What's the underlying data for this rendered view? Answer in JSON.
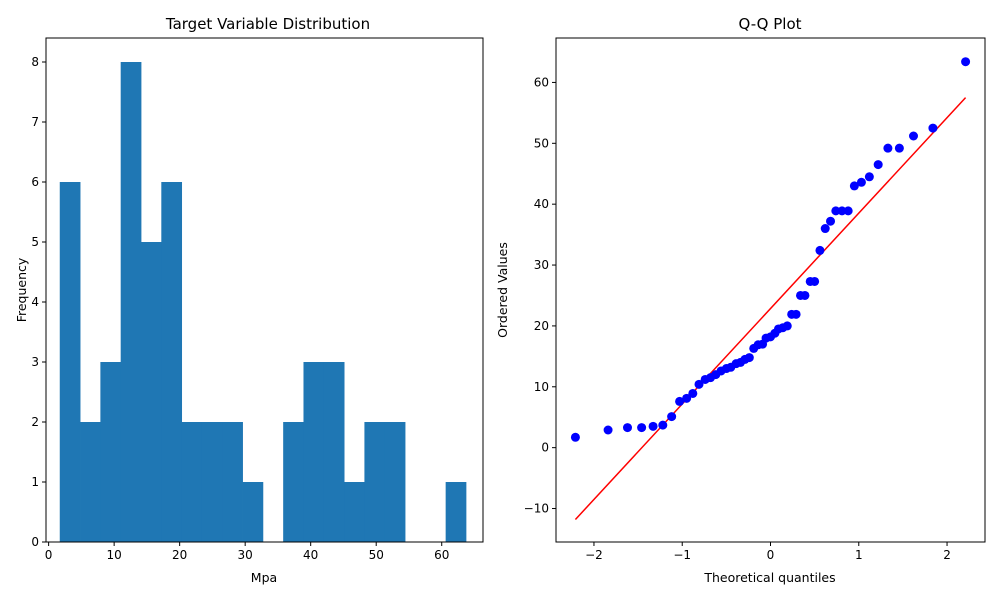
{
  "chart_data": [
    {
      "type": "bar",
      "subtype": "histogram",
      "title": "Target Variable Distribution",
      "xlabel": "Mpa",
      "ylabel": "Frequency",
      "color": "#1f77b4",
      "xlim": [
        -0.4,
        66.3
      ],
      "ylim": [
        0,
        8.4
      ],
      "xticks": [
        0,
        10,
        20,
        30,
        40,
        50,
        60
      ],
      "yticks": [
        0,
        1,
        2,
        3,
        4,
        5,
        6,
        7,
        8
      ],
      "bins": [
        {
          "start": 1.7,
          "end": 4.8,
          "count": 6
        },
        {
          "start": 4.8,
          "end": 7.9,
          "count": 2
        },
        {
          "start": 7.9,
          "end": 11.0,
          "count": 3
        },
        {
          "start": 11.0,
          "end": 14.1,
          "count": 8
        },
        {
          "start": 14.1,
          "end": 17.2,
          "count": 5
        },
        {
          "start": 17.2,
          "end": 20.3,
          "count": 6
        },
        {
          "start": 20.3,
          "end": 23.4,
          "count": 2
        },
        {
          "start": 23.4,
          "end": 26.5,
          "count": 2
        },
        {
          "start": 26.5,
          "end": 29.6,
          "count": 2
        },
        {
          "start": 29.6,
          "end": 32.7,
          "count": 1
        },
        {
          "start": 32.7,
          "end": 35.8,
          "count": 0
        },
        {
          "start": 35.8,
          "end": 38.9,
          "count": 2
        },
        {
          "start": 38.9,
          "end": 42.0,
          "count": 3
        },
        {
          "start": 42.0,
          "end": 45.1,
          "count": 3
        },
        {
          "start": 45.1,
          "end": 48.2,
          "count": 1
        },
        {
          "start": 48.2,
          "end": 51.3,
          "count": 2
        },
        {
          "start": 51.3,
          "end": 54.4,
          "count": 2
        },
        {
          "start": 54.4,
          "end": 57.5,
          "count": 0
        },
        {
          "start": 57.5,
          "end": 60.6,
          "count": 0
        },
        {
          "start": 60.6,
          "end": 63.7,
          "count": 1
        }
      ]
    },
    {
      "type": "scatter",
      "title": "Q-Q Plot",
      "xlabel": "Theoretical quantiles",
      "ylabel": "Ordered Values",
      "point_color": "#0000ff",
      "line_color": "#ff0000",
      "xlim": [
        -2.43,
        2.43
      ],
      "ylim": [
        -15.5,
        67.3
      ],
      "xticks": [
        -2,
        -1,
        0,
        1,
        2
      ],
      "yticks": [
        -10,
        0,
        10,
        20,
        30,
        40,
        50,
        60
      ],
      "fit_line": {
        "x": [
          -2.21,
          2.21
        ],
        "y": [
          -11.8,
          57.5
        ]
      },
      "points": [
        {
          "x": -2.21,
          "y": 1.7
        },
        {
          "x": -1.84,
          "y": 2.9
        },
        {
          "x": -1.62,
          "y": 3.3
        },
        {
          "x": -1.46,
          "y": 3.3
        },
        {
          "x": -1.33,
          "y": 3.5
        },
        {
          "x": -1.22,
          "y": 3.7
        },
        {
          "x": -1.12,
          "y": 5.1
        },
        {
          "x": -1.03,
          "y": 7.6
        },
        {
          "x": -0.95,
          "y": 8.1
        },
        {
          "x": -0.88,
          "y": 8.9
        },
        {
          "x": -0.81,
          "y": 10.4
        },
        {
          "x": -0.74,
          "y": 11.2
        },
        {
          "x": -0.68,
          "y": 11.5
        },
        {
          "x": -0.62,
          "y": 12.0
        },
        {
          "x": -0.56,
          "y": 12.6
        },
        {
          "x": -0.5,
          "y": 13.0
        },
        {
          "x": -0.45,
          "y": 13.2
        },
        {
          "x": -0.39,
          "y": 13.8
        },
        {
          "x": -0.34,
          "y": 14.0
        },
        {
          "x": -0.29,
          "y": 14.5
        },
        {
          "x": -0.24,
          "y": 14.8
        },
        {
          "x": -0.19,
          "y": 16.3
        },
        {
          "x": -0.14,
          "y": 16.9
        },
        {
          "x": -0.09,
          "y": 17.0
        },
        {
          "x": -0.05,
          "y": 18.0
        },
        {
          "x": 0.0,
          "y": 18.2
        },
        {
          "x": 0.05,
          "y": 18.8
        },
        {
          "x": 0.09,
          "y": 19.5
        },
        {
          "x": 0.14,
          "y": 19.7
        },
        {
          "x": 0.19,
          "y": 20.0
        },
        {
          "x": 0.24,
          "y": 21.9
        },
        {
          "x": 0.29,
          "y": 21.9
        },
        {
          "x": 0.34,
          "y": 25.0
        },
        {
          "x": 0.39,
          "y": 25.0
        },
        {
          "x": 0.45,
          "y": 27.3
        },
        {
          "x": 0.5,
          "y": 27.3
        },
        {
          "x": 0.56,
          "y": 32.4
        },
        {
          "x": 0.62,
          "y": 36.0
        },
        {
          "x": 0.68,
          "y": 37.2
        },
        {
          "x": 0.74,
          "y": 38.9
        },
        {
          "x": 0.81,
          "y": 38.9
        },
        {
          "x": 0.88,
          "y": 38.9
        },
        {
          "x": 0.95,
          "y": 43.0
        },
        {
          "x": 1.03,
          "y": 43.6
        },
        {
          "x": 1.12,
          "y": 44.5
        },
        {
          "x": 1.22,
          "y": 46.5
        },
        {
          "x": 1.33,
          "y": 49.2
        },
        {
          "x": 1.46,
          "y": 49.2
        },
        {
          "x": 1.62,
          "y": 51.2
        },
        {
          "x": 1.84,
          "y": 52.5
        },
        {
          "x": 2.21,
          "y": 63.4
        }
      ]
    }
  ]
}
